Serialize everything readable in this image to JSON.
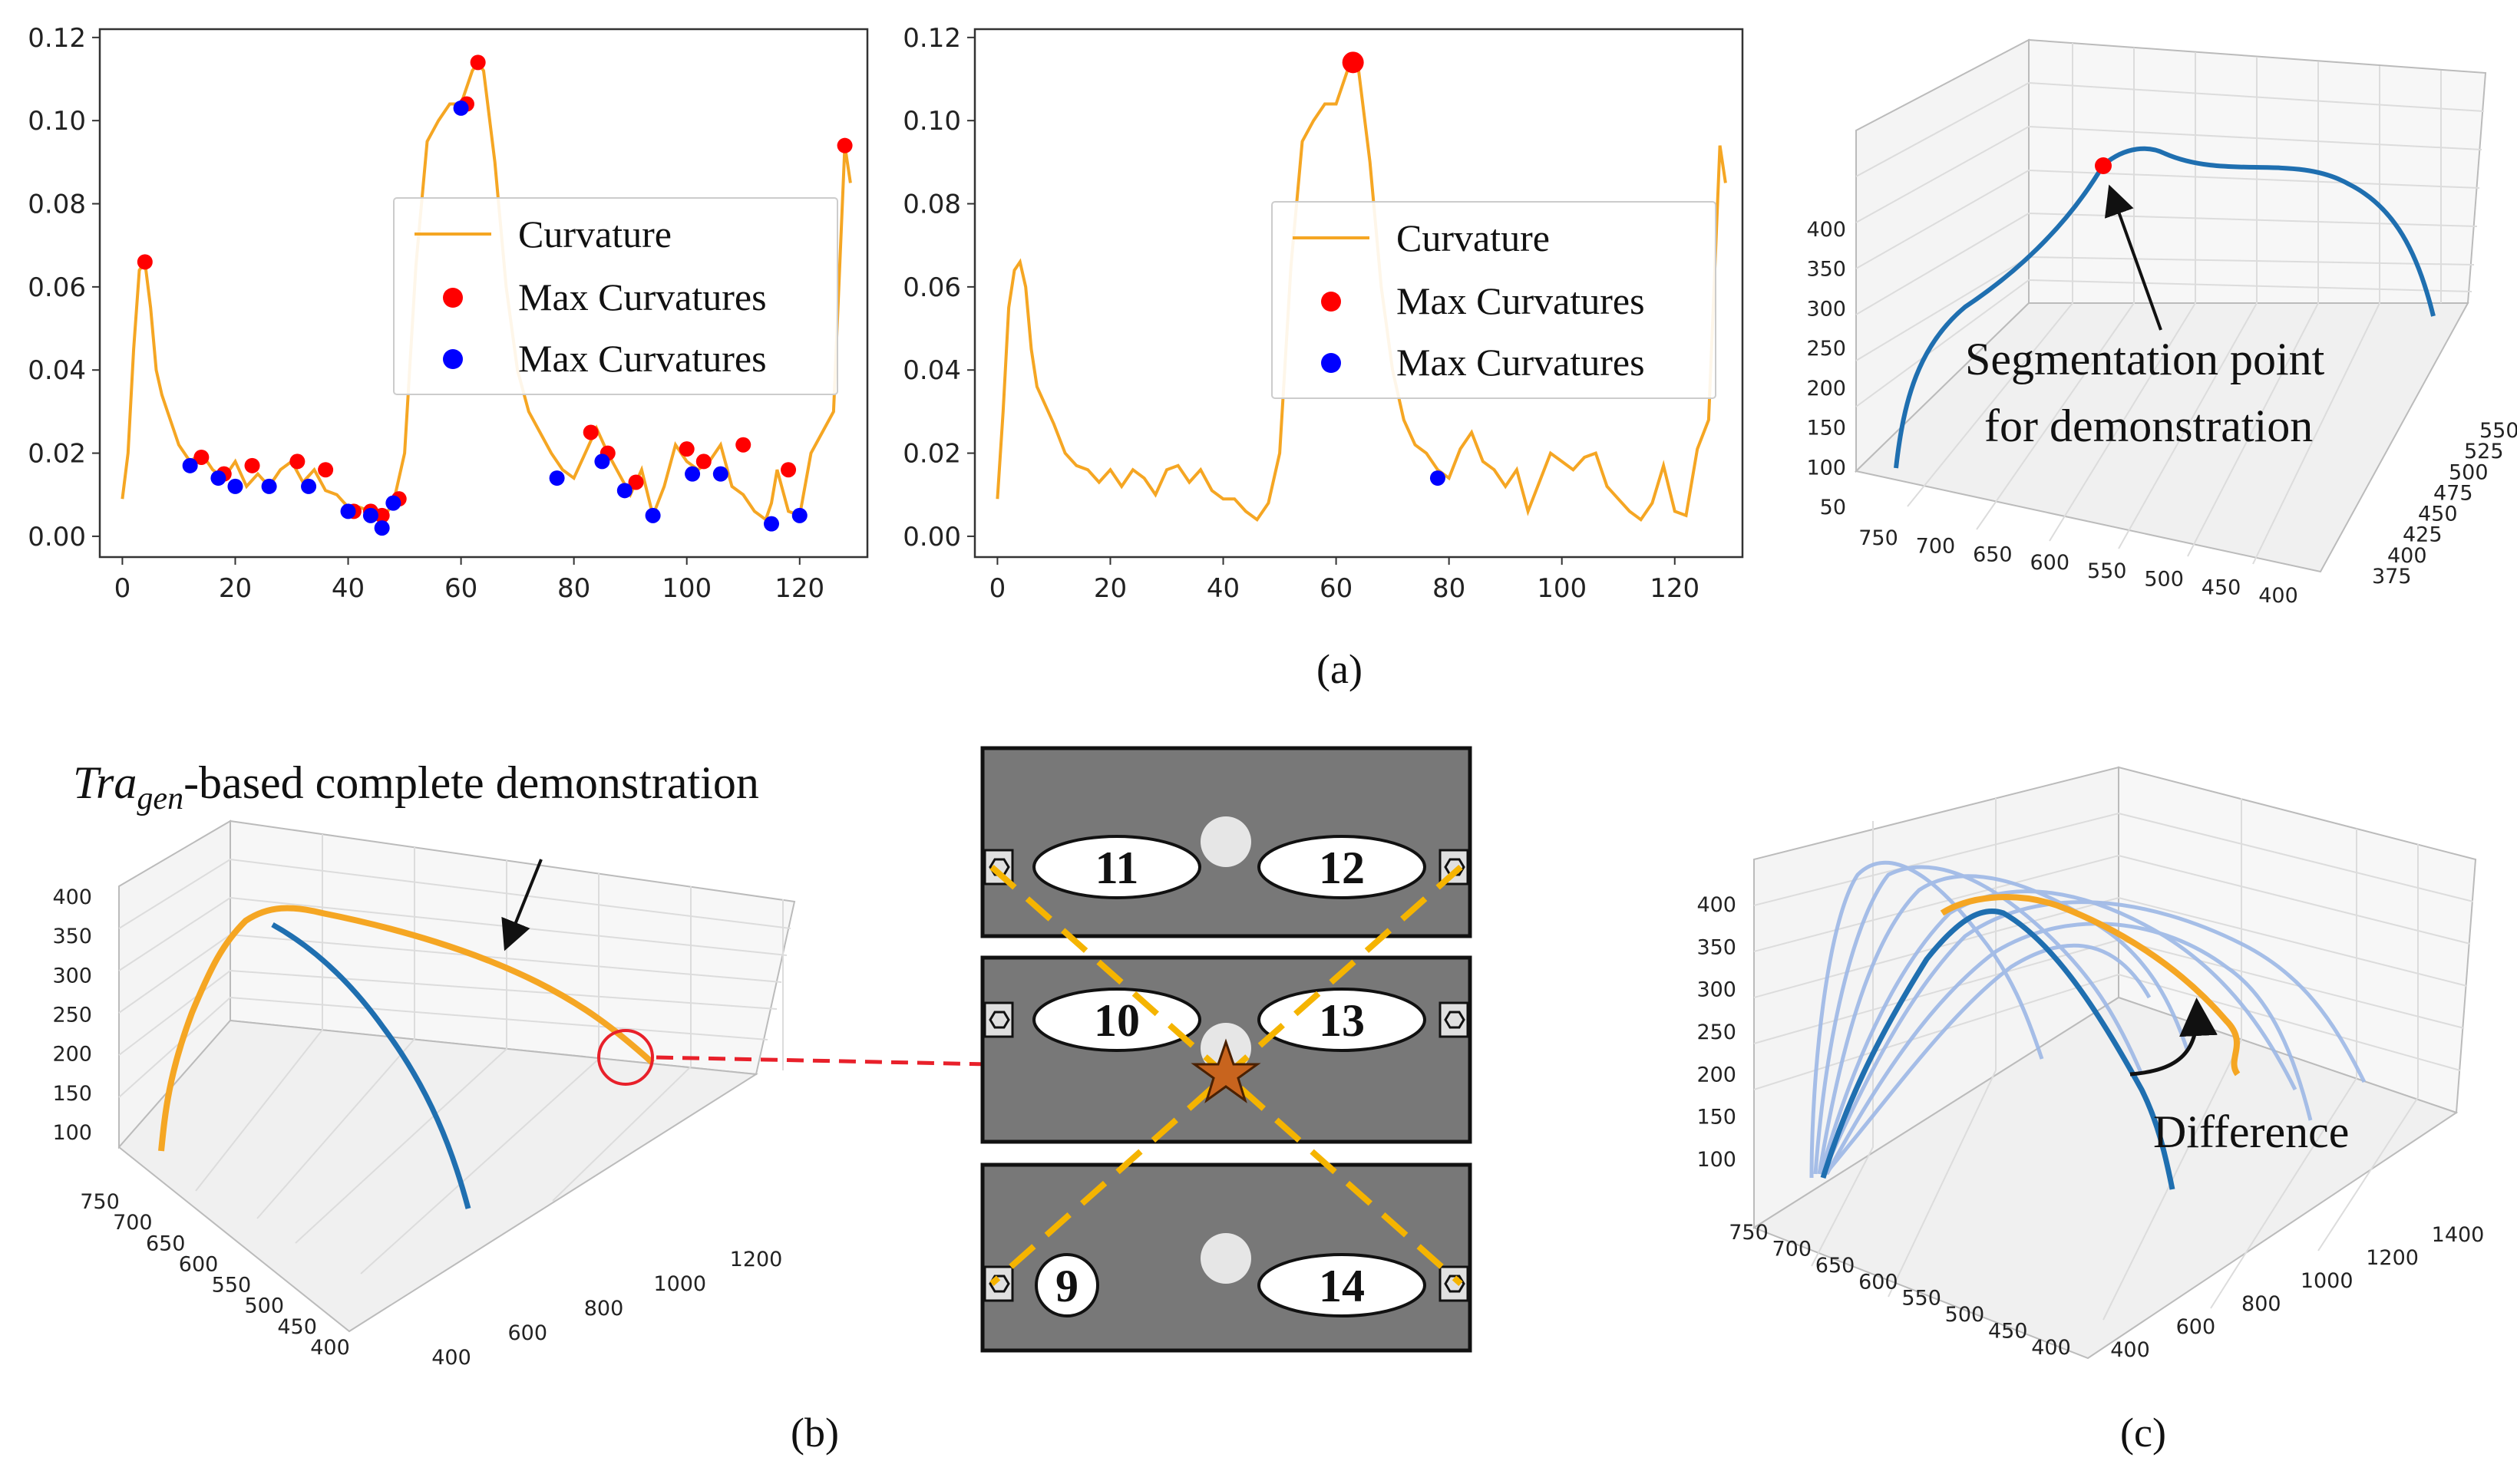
{
  "figure": {
    "panel_labels": {
      "a": "(a)",
      "b": "(b)",
      "c": "(c)"
    }
  },
  "chart_data": [
    {
      "id": "a1",
      "type": "line",
      "title": "",
      "xlim": [
        -4,
        132
      ],
      "ylim": [
        -0.005,
        0.122
      ],
      "xticks": [
        0,
        20,
        40,
        60,
        80,
        100,
        120
      ],
      "yticks": [
        0.0,
        0.02,
        0.04,
        0.06,
        0.08,
        0.1,
        0.12
      ],
      "ytick_labels": [
        "0.00",
        "0.02",
        "0.04",
        "0.06",
        "0.08",
        "0.10",
        "0.12"
      ],
      "legend": {
        "position": "center-right",
        "entries": [
          "Curvature",
          "Max Curvatures",
          "Max Curvatures"
        ]
      },
      "series": [
        {
          "name": "Curvature",
          "color": "#f5a623",
          "x": [
            0,
            1,
            2,
            3,
            4,
            5,
            6,
            7,
            8,
            9,
            10,
            12,
            14,
            16,
            18,
            20,
            22,
            24,
            26,
            28,
            30,
            32,
            34,
            36,
            38,
            40,
            42,
            44,
            46,
            48,
            50,
            52,
            54,
            56,
            58,
            60,
            62,
            63,
            64,
            66,
            68,
            70,
            72,
            74,
            76,
            78,
            80,
            82,
            84,
            86,
            88,
            90,
            92,
            94,
            96,
            98,
            100,
            102,
            104,
            106,
            108,
            110,
            112,
            114,
            115,
            116,
            118,
            120,
            122,
            124,
            126,
            128,
            129
          ],
          "y": [
            0.009,
            0.02,
            0.045,
            0.064,
            0.066,
            0.055,
            0.04,
            0.034,
            0.03,
            0.026,
            0.022,
            0.018,
            0.02,
            0.016,
            0.014,
            0.018,
            0.012,
            0.015,
            0.012,
            0.016,
            0.018,
            0.013,
            0.016,
            0.011,
            0.01,
            0.007,
            0.007,
            0.006,
            0.004,
            0.008,
            0.02,
            0.065,
            0.095,
            0.1,
            0.104,
            0.104,
            0.112,
            0.114,
            0.112,
            0.09,
            0.06,
            0.04,
            0.03,
            0.025,
            0.02,
            0.016,
            0.014,
            0.02,
            0.026,
            0.02,
            0.015,
            0.01,
            0.016,
            0.005,
            0.012,
            0.022,
            0.018,
            0.016,
            0.018,
            0.022,
            0.012,
            0.01,
            0.006,
            0.004,
            0.008,
            0.016,
            0.006,
            0.005,
            0.02,
            0.025,
            0.03,
            0.094,
            0.085
          ]
        },
        {
          "name": "Max Curvatures",
          "color": "#ff0000",
          "x": [
            4,
            14,
            18,
            23,
            31,
            36,
            41,
            44,
            46,
            49,
            61,
            63,
            83,
            86,
            91,
            100,
            103,
            110,
            118,
            128
          ],
          "y": [
            0.066,
            0.019,
            0.015,
            0.017,
            0.018,
            0.016,
            0.006,
            0.006,
            0.005,
            0.009,
            0.104,
            0.114,
            0.025,
            0.02,
            0.013,
            0.021,
            0.018,
            0.022,
            0.016,
            0.094
          ]
        },
        {
          "name": "Max Curvatures",
          "color": "#0000ff",
          "x": [
            12,
            17,
            20,
            26,
            33,
            40,
            44,
            46,
            48,
            60,
            77,
            85,
            89,
            94,
            101,
            106,
            115,
            120
          ],
          "y": [
            0.017,
            0.014,
            0.012,
            0.012,
            0.012,
            0.006,
            0.005,
            0.002,
            0.008,
            0.103,
            0.014,
            0.018,
            0.011,
            0.005,
            0.015,
            0.015,
            0.003,
            0.005
          ]
        }
      ]
    },
    {
      "id": "a2",
      "type": "line",
      "title": "",
      "xlim": [
        -4,
        132
      ],
      "ylim": [
        -0.005,
        0.122
      ],
      "xticks": [
        0,
        20,
        40,
        60,
        80,
        100,
        120
      ],
      "yticks": [
        0.0,
        0.02,
        0.04,
        0.06,
        0.08,
        0.1,
        0.12
      ],
      "ytick_labels": [
        "0.00",
        "0.02",
        "0.04",
        "0.06",
        "0.08",
        "0.10",
        "0.12"
      ],
      "legend": {
        "position": "center-right",
        "entries": [
          "Curvature",
          "Max Curvatures",
          "Max Curvatures"
        ]
      },
      "series": [
        {
          "name": "Curvature",
          "color": "#f5a623",
          "x": [
            0,
            1,
            2,
            3,
            4,
            5,
            6,
            7,
            8,
            10,
            12,
            14,
            16,
            18,
            20,
            22,
            24,
            26,
            28,
            30,
            32,
            34,
            36,
            38,
            40,
            42,
            44,
            46,
            48,
            50,
            52,
            54,
            56,
            58,
            60,
            62,
            63,
            64,
            66,
            68,
            70,
            72,
            74,
            76,
            78,
            80,
            82,
            84,
            86,
            88,
            90,
            92,
            94,
            96,
            98,
            100,
            102,
            104,
            106,
            108,
            110,
            112,
            114,
            116,
            118,
            120,
            122,
            124,
            126,
            128,
            129
          ],
          "y": [
            0.009,
            0.03,
            0.055,
            0.064,
            0.066,
            0.06,
            0.045,
            0.036,
            0.033,
            0.027,
            0.02,
            0.017,
            0.016,
            0.013,
            0.016,
            0.012,
            0.016,
            0.014,
            0.01,
            0.016,
            0.017,
            0.013,
            0.016,
            0.011,
            0.009,
            0.009,
            0.006,
            0.004,
            0.008,
            0.02,
            0.065,
            0.095,
            0.1,
            0.104,
            0.104,
            0.112,
            0.114,
            0.112,
            0.09,
            0.06,
            0.04,
            0.028,
            0.022,
            0.02,
            0.016,
            0.014,
            0.021,
            0.025,
            0.018,
            0.016,
            0.012,
            0.016,
            0.006,
            0.013,
            0.02,
            0.018,
            0.016,
            0.019,
            0.02,
            0.012,
            0.009,
            0.006,
            0.004,
            0.008,
            0.017,
            0.006,
            0.005,
            0.021,
            0.028,
            0.094,
            0.085
          ]
        },
        {
          "name": "Max Curvatures",
          "color": "#ff0000",
          "x": [
            63
          ],
          "y": [
            0.114
          ]
        },
        {
          "name": "Max Curvatures",
          "color": "#0000ff",
          "x": [
            78
          ],
          "y": [
            0.014
          ]
        }
      ]
    },
    {
      "id": "a3",
      "type": "line3d",
      "xticks": [
        750,
        700,
        650,
        600,
        550,
        500,
        450,
        400
      ],
      "yticks": [
        375,
        400,
        425,
        450,
        475,
        500,
        525,
        550
      ],
      "zticks": [
        50,
        100,
        150,
        200,
        250,
        300,
        350,
        400
      ],
      "annotation": [
        "Segmentation point",
        "for demonstration"
      ],
      "series": [
        {
          "name": "demonstration",
          "color": "#1f6fb0"
        }
      ],
      "marker": {
        "name": "segmentation point",
        "color": "#ff0000"
      }
    },
    {
      "id": "b1",
      "type": "line3d",
      "title_main": "Tra",
      "title_sub": "gen",
      "title_rest": "-based complete demonstration",
      "xticks": [
        750,
        700,
        650,
        600,
        550,
        500,
        450,
        400
      ],
      "yticks": [
        400,
        600,
        800,
        1000,
        1200
      ],
      "zticks": [
        100,
        150,
        200,
        250,
        300,
        350,
        400
      ],
      "series": [
        {
          "name": "complete demonstration",
          "color": "#f5a623"
        },
        {
          "name": "demonstration",
          "color": "#1f6fb0"
        }
      ]
    },
    {
      "id": "b2",
      "type": "diagram",
      "slots": [
        "11",
        "12",
        "10",
        "13",
        "9",
        "14"
      ]
    },
    {
      "id": "c1",
      "type": "line3d",
      "xticks": [
        750,
        700,
        650,
        600,
        550,
        500,
        450,
        400
      ],
      "yticks": [
        400,
        600,
        800,
        1000,
        1200,
        1400
      ],
      "zticks": [
        100,
        150,
        200,
        250,
        300,
        350,
        400
      ],
      "annotation": "Difference",
      "series": [
        {
          "name": "generated",
          "color": "#f5a623"
        },
        {
          "name": "demonstration",
          "color": "#1f6fb0"
        },
        {
          "name": "candidates",
          "color": "#9db8e6"
        }
      ]
    }
  ]
}
